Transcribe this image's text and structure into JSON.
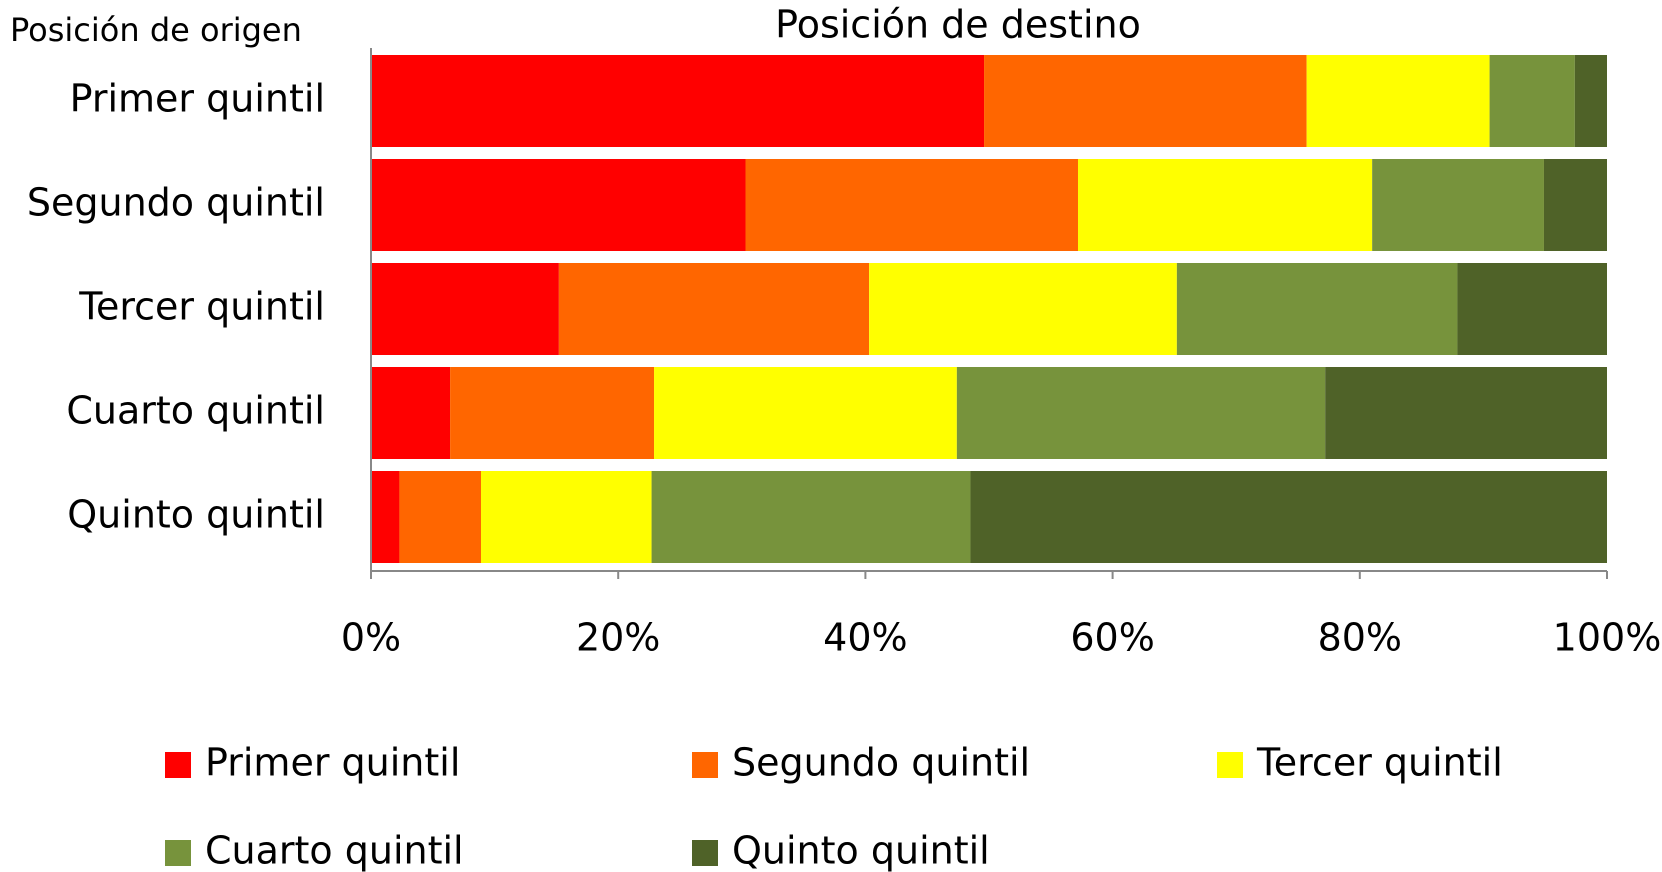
{
  "chart_data": {
    "type": "bar",
    "orientation": "horizontal",
    "stacked": true,
    "title": "Posición de destino",
    "y_label": "Posición de origen",
    "categories": [
      "Primer quintil",
      "Segundo quintil",
      "Tercer quintil",
      "Cuarto quintil",
      "Quinto quintil"
    ],
    "series": [
      {
        "name": "Primer quintil",
        "color": "#ff0000",
        "values": [
          49.6,
          30.3,
          15.2,
          6.4,
          2.3
        ]
      },
      {
        "name": "Segundo quintil",
        "color": "#ff6600",
        "values": [
          26.1,
          26.9,
          25.1,
          16.5,
          6.6
        ]
      },
      {
        "name": "Tercer quintil",
        "color": "#ffff00",
        "values": [
          14.8,
          23.8,
          24.9,
          24.5,
          13.8
        ]
      },
      {
        "name": "Cuarto quintil",
        "color": "#77933c",
        "values": [
          6.9,
          13.9,
          22.7,
          29.8,
          25.8
        ]
      },
      {
        "name": "Quinto quintil",
        "color": "#4f6228",
        "values": [
          2.6,
          5.1,
          12.1,
          22.8,
          51.5
        ]
      }
    ],
    "xlim": [
      0,
      100
    ],
    "xticks": [
      {
        "value": 0,
        "label": "0%"
      },
      {
        "value": 20,
        "label": "20%"
      },
      {
        "value": 40,
        "label": "40%"
      },
      {
        "value": 60,
        "label": "60%"
      },
      {
        "value": 80,
        "label": "80%"
      },
      {
        "value": 100,
        "label": "100%"
      }
    ],
    "legend": "bottom"
  }
}
